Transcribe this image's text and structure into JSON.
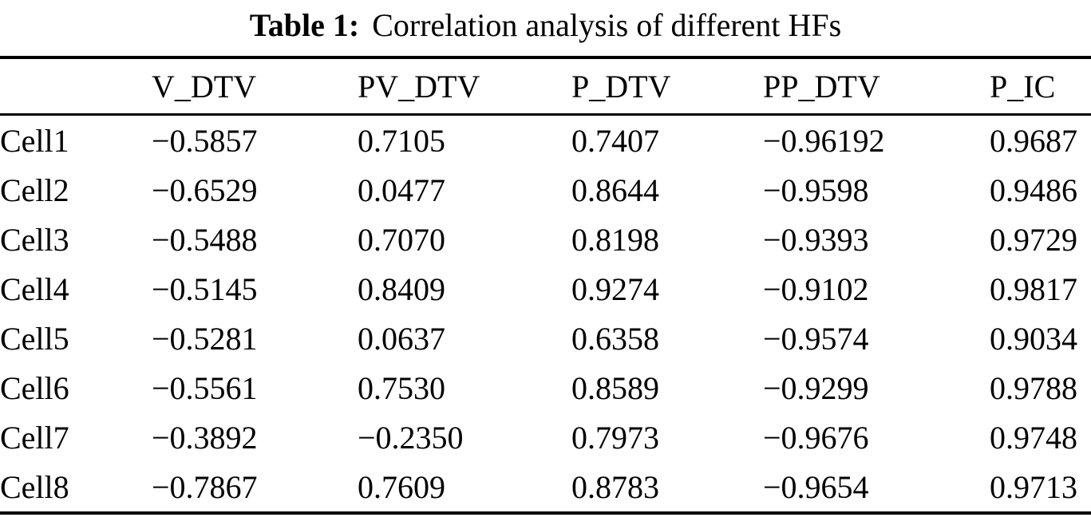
{
  "page": {
    "background": "#ffffff",
    "text_color": "#000000"
  },
  "title": {
    "label": "Table 1:",
    "text": "Correlation analysis of different HFs"
  },
  "table": {
    "columns": [
      "",
      "V_DTV",
      "PV_DTV",
      "P_DTV",
      "PP_DTV",
      "P_IC"
    ],
    "rows": [
      {
        "label": "Cell1",
        "values": [
          "−0.5857",
          "0.7105",
          "0.7407",
          "−0.96192",
          "0.9687"
        ]
      },
      {
        "label": "Cell2",
        "values": [
          "−0.6529",
          "0.0477",
          "0.8644",
          "−0.9598",
          "0.9486"
        ]
      },
      {
        "label": "Cell3",
        "values": [
          "−0.5488",
          "0.7070",
          "0.8198",
          "−0.9393",
          "0.9729"
        ]
      },
      {
        "label": "Cell4",
        "values": [
          "−0.5145",
          "0.8409",
          "0.9274",
          "−0.9102",
          "0.9817"
        ]
      },
      {
        "label": "Cell5",
        "values": [
          "−0.5281",
          "0.0637",
          "0.6358",
          "−0.9574",
          "0.9034"
        ]
      },
      {
        "label": "Cell6",
        "values": [
          "−0.5561",
          "0.7530",
          "0.8589",
          "−0.9299",
          "0.9788"
        ]
      },
      {
        "label": "Cell7",
        "values": [
          "−0.3892",
          "−0.2350",
          "0.7973",
          "−0.9676",
          "0.9748"
        ]
      },
      {
        "label": "Cell8",
        "values": [
          "−0.7867",
          "0.7609",
          "0.8783",
          "−0.9654",
          "0.9713"
        ]
      }
    ]
  },
  "chart_data": {
    "type": "table",
    "title": "Table 1: Correlation analysis of different HFs",
    "columns": [
      "V_DTV",
      "PV_DTV",
      "P_DTV",
      "PP_DTV",
      "P_IC"
    ],
    "row_labels": [
      "Cell1",
      "Cell2",
      "Cell3",
      "Cell4",
      "Cell5",
      "Cell6",
      "Cell7",
      "Cell8"
    ],
    "values": [
      [
        -0.5857,
        0.7105,
        0.7407,
        -0.96192,
        0.9687
      ],
      [
        -0.6529,
        0.0477,
        0.8644,
        -0.9598,
        0.9486
      ],
      [
        -0.5488,
        0.707,
        0.8198,
        -0.9393,
        0.9729
      ],
      [
        -0.5145,
        0.8409,
        0.9274,
        -0.9102,
        0.9817
      ],
      [
        -0.5281,
        0.0637,
        0.6358,
        -0.9574,
        0.9034
      ],
      [
        -0.5561,
        0.753,
        0.8589,
        -0.9299,
        0.9788
      ],
      [
        -0.3892,
        -0.235,
        0.7973,
        -0.9676,
        0.9748
      ],
      [
        -0.7867,
        0.7609,
        0.8783,
        -0.9654,
        0.9713
      ]
    ]
  }
}
